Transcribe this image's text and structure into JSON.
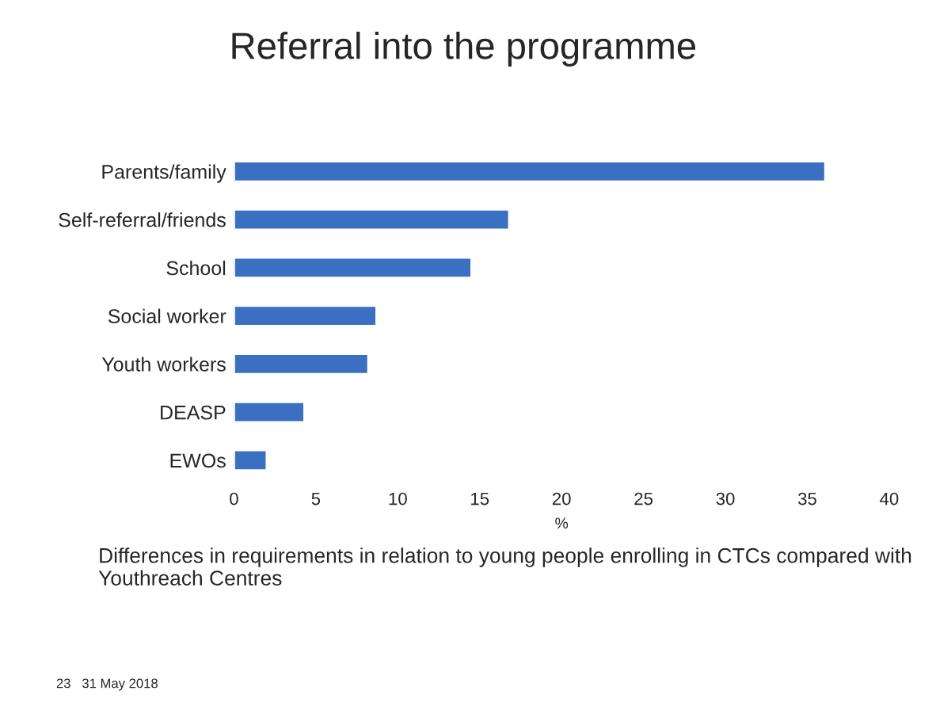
{
  "chart_data": {
    "type": "bar",
    "orientation": "horizontal",
    "title": "Referral into the programme",
    "categories": [
      "Parents/family",
      "Self-referral/friends",
      "School",
      "Social worker",
      "Youth workers",
      "DEASP",
      "EWOs"
    ],
    "values": [
      36.1,
      16.8,
      14.5,
      8.7,
      8.2,
      4.3,
      2.0
    ],
    "color": "#3b6fc2",
    "xlabel": "%",
    "xlim": [
      0,
      40
    ],
    "xticks": [
      0,
      5,
      10,
      15,
      20,
      25,
      30,
      35,
      40
    ],
    "grid": false,
    "legend": false,
    "annotations": [
      "Differences in requirements in relation to young people enrolling in CTCs compared with Youthreach Centres",
      "23   31 May 2018"
    ]
  }
}
